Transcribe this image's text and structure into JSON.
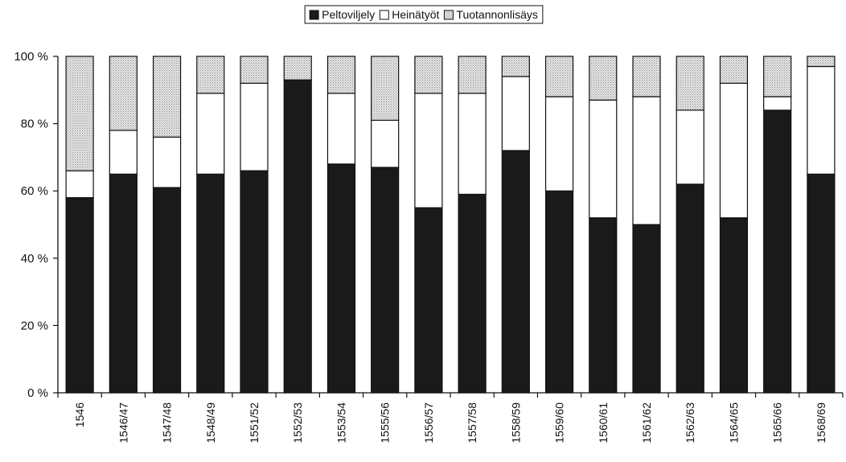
{
  "chart_data": {
    "type": "bar",
    "stacked": true,
    "percent": true,
    "categories": [
      "1546",
      "1546/47",
      "1547/48",
      "1548/49",
      "1551/52",
      "1552/53",
      "1553/54",
      "1555/56",
      "1556/57",
      "1557/58",
      "1558/59",
      "1559/60",
      "1560/61",
      "1561/62",
      "1562/63",
      "1564/65",
      "1565/66",
      "1568/69"
    ],
    "series": [
      {
        "name": "Peltoviljely",
        "color": "#1a1a1a",
        "values": [
          58,
          65,
          61,
          65,
          66,
          93,
          68,
          67,
          55,
          59,
          72,
          60,
          52,
          50,
          62,
          52,
          84,
          65
        ]
      },
      {
        "name": "Heinätyöt",
        "color": "#ffffff",
        "values": [
          8,
          13,
          15,
          24,
          26,
          0,
          21,
          14,
          34,
          30,
          22,
          28,
          35,
          38,
          22,
          40,
          4,
          32
        ]
      },
      {
        "name": "Tuotannonlisäys",
        "color": "#cfcfcf",
        "values": [
          34,
          22,
          24,
          11,
          8,
          7,
          11,
          19,
          11,
          11,
          6,
          12,
          13,
          12,
          16,
          8,
          12,
          3
        ]
      }
    ],
    "ylim": [
      0,
      100
    ],
    "yticks": [
      0,
      20,
      40,
      60,
      80,
      100
    ],
    "ytick_labels": [
      "0 %",
      "20 %",
      "40 %",
      "60 %",
      "80 %",
      "100 %"
    ],
    "legend": "top"
  }
}
